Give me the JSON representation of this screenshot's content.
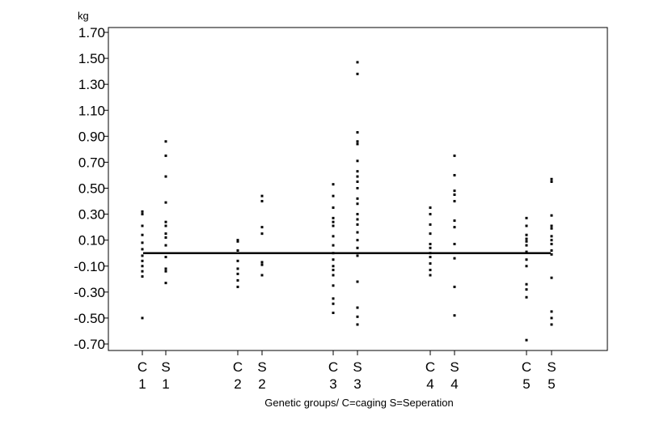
{
  "chart_data": {
    "type": "scatter",
    "unit_label": "kg",
    "xlabel": "Genetic groups/ C=caging S=Seperation",
    "ylim": [
      -0.75,
      1.75
    ],
    "yticks": [
      "1.70",
      "1.50",
      "1.30",
      "1.10",
      "0.90",
      "0.70",
      "0.50",
      "0.30",
      "0.10",
      "-0.10",
      "-0.30",
      "-0.50",
      "-0.70"
    ],
    "reference_line_y": 0.0,
    "grid": false,
    "categories": [
      {
        "letter": "C",
        "number": "1",
        "values": [
          0.32,
          0.3,
          0.21,
          0.14,
          0.08,
          0.03,
          -0.02,
          -0.06,
          -0.1,
          -0.14,
          -0.18,
          -0.5
        ]
      },
      {
        "letter": "S",
        "number": "1",
        "values": [
          0.86,
          0.75,
          0.59,
          0.39,
          0.24,
          0.21,
          0.15,
          0.12,
          0.06,
          -0.03,
          -0.12,
          -0.14,
          -0.23
        ]
      },
      {
        "letter": "C",
        "number": "2",
        "values": [
          0.1,
          0.09,
          0.02,
          -0.06,
          -0.12,
          -0.16,
          -0.21,
          -0.26
        ]
      },
      {
        "letter": "S",
        "number": "2",
        "values": [
          0.44,
          0.4,
          0.2,
          0.15,
          -0.07,
          -0.09,
          -0.17
        ]
      },
      {
        "letter": "C",
        "number": "3",
        "values": [
          0.53,
          0.44,
          0.35,
          0.27,
          0.24,
          0.21,
          0.13,
          0.06,
          0.0,
          -0.05,
          -0.1,
          -0.13,
          -0.17,
          -0.25,
          -0.35,
          -0.39,
          -0.46
        ]
      },
      {
        "letter": "S",
        "number": "3",
        "values": [
          1.47,
          1.38,
          0.93,
          0.86,
          0.84,
          0.71,
          0.63,
          0.59,
          0.55,
          0.5,
          0.42,
          0.38,
          0.3,
          0.26,
          0.22,
          0.16,
          0.1,
          0.04,
          -0.02,
          -0.22,
          -0.42,
          -0.49,
          -0.55
        ]
      },
      {
        "letter": "C",
        "number": "4",
        "values": [
          0.35,
          0.3,
          0.22,
          0.15,
          0.07,
          0.04,
          0.0,
          -0.03,
          -0.08,
          -0.13,
          -0.17
        ]
      },
      {
        "letter": "S",
        "number": "4",
        "values": [
          0.75,
          0.6,
          0.48,
          0.45,
          0.4,
          0.25,
          0.2,
          0.07,
          -0.04,
          -0.26,
          -0.48
        ]
      },
      {
        "letter": "C",
        "number": "5",
        "values": [
          0.27,
          0.21,
          0.14,
          0.11,
          0.09,
          0.06,
          0.01,
          -0.05,
          -0.1,
          -0.24,
          -0.28,
          -0.34,
          -0.67
        ]
      },
      {
        "letter": "S",
        "number": "5",
        "values": [
          0.57,
          0.55,
          0.29,
          0.21,
          0.19,
          0.13,
          0.1,
          0.07,
          0.02,
          -0.01,
          -0.19,
          -0.45,
          -0.5,
          -0.55
        ]
      }
    ]
  }
}
